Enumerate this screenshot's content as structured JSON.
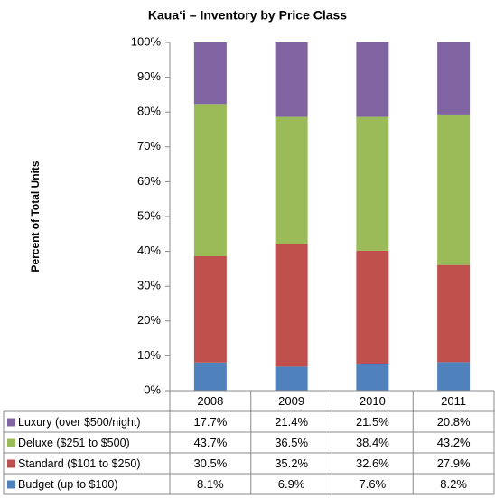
{
  "chart_data": {
    "type": "stacked_bar",
    "title": "Kaua‘i – Inventory by Price Class",
    "y_label": "Percent of Total Units",
    "categories": [
      "2008",
      "2009",
      "2010",
      "2011"
    ],
    "series": [
      {
        "name": "Luxury (over $500/night)",
        "color": "#8064a2",
        "values": [
          17.7,
          21.4,
          21.5,
          20.8
        ],
        "value_labels": [
          "17.7%",
          "21.4%",
          "21.5%",
          "20.8%"
        ]
      },
      {
        "name": "Deluxe ($251 to $500)",
        "color": "#9bbb59",
        "values": [
          43.7,
          36.5,
          38.4,
          43.2
        ],
        "value_labels": [
          "43.7%",
          "36.5%",
          "38.4%",
          "43.2%"
        ]
      },
      {
        "name": "Standard ($101 to $250)",
        "color": "#c0504d",
        "values": [
          30.5,
          35.2,
          32.6,
          27.9
        ],
        "value_labels": [
          "30.5%",
          "35.2%",
          "32.6%",
          "27.9%"
        ]
      },
      {
        "name": "Budget (up to $100)",
        "color": "#4f81bd",
        "values": [
          8.1,
          6.9,
          7.6,
          8.2
        ],
        "value_labels": [
          "8.1%",
          "6.9%",
          "7.6%",
          "8.2%"
        ]
      }
    ],
    "ylim": [
      0,
      100
    ],
    "yticks": [
      {
        "value": 0,
        "label": "0%"
      },
      {
        "value": 10,
        "label": "10%"
      },
      {
        "value": 20,
        "label": "20%"
      },
      {
        "value": 30,
        "label": "30%"
      },
      {
        "value": 40,
        "label": "40%"
      },
      {
        "value": 50,
        "label": "50%"
      },
      {
        "value": 60,
        "label": "60%"
      },
      {
        "value": 70,
        "label": "70%"
      },
      {
        "value": 80,
        "label": "80%"
      },
      {
        "value": 90,
        "label": "90%"
      },
      {
        "value": 100,
        "label": "100%"
      }
    ],
    "grid": false
  }
}
